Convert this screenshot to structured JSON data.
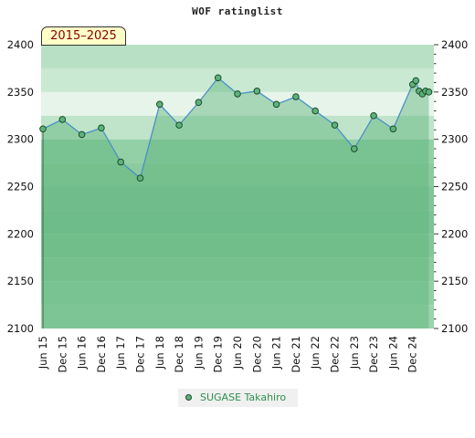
{
  "chart_data": {
    "type": "line",
    "title": "WOF ratinglist",
    "badge": "2015–2025",
    "ylim": [
      2100,
      2400
    ],
    "yticks": [
      2100,
      2150,
      2200,
      2250,
      2300,
      2350,
      2400
    ],
    "y_axis_both_sides": true,
    "x_tick_labels": [
      "Jun 15",
      "Dec 15",
      "Jun 16",
      "Dec 16",
      "Jun 17",
      "Dec 17",
      "Jun 18",
      "Dec 18",
      "Jun 19",
      "Dec 19",
      "Jun 20",
      "Dec 20",
      "Jun 21",
      "Dec 21",
      "Jun 22",
      "Dec 22",
      "Jun 23",
      "Dec 23",
      "Jun 24",
      "Dec 24"
    ],
    "series": [
      {
        "name": "SUGASE Takahiro",
        "color": "#5cb37a",
        "points": [
          {
            "x": "2015-06",
            "y": 2311
          },
          {
            "x": "2015-12",
            "y": 2321
          },
          {
            "x": "2016-06",
            "y": 2305
          },
          {
            "x": "2016-12",
            "y": 2312
          },
          {
            "x": "2017-06",
            "y": 2276
          },
          {
            "x": "2017-12",
            "y": 2259
          },
          {
            "x": "2018-06",
            "y": 2337
          },
          {
            "x": "2018-12",
            "y": 2315
          },
          {
            "x": "2019-06",
            "y": 2339
          },
          {
            "x": "2019-12",
            "y": 2365
          },
          {
            "x": "2020-06",
            "y": 2348
          },
          {
            "x": "2020-12",
            "y": 2351
          },
          {
            "x": "2021-06",
            "y": 2337
          },
          {
            "x": "2021-12",
            "y": 2345
          },
          {
            "x": "2022-06",
            "y": 2330
          },
          {
            "x": "2022-12",
            "y": 2315
          },
          {
            "x": "2023-06",
            "y": 2290
          },
          {
            "x": "2023-12",
            "y": 2325
          },
          {
            "x": "2024-06",
            "y": 2311
          },
          {
            "x": "2024-12",
            "y": 2358
          },
          {
            "x": "2025-01",
            "y": 2362
          },
          {
            "x": "2025-02",
            "y": 2351
          },
          {
            "x": "2025-03",
            "y": 2348
          },
          {
            "x": "2025-04",
            "y": 2351
          },
          {
            "x": "2025-05",
            "y": 2350
          }
        ]
      }
    ],
    "legend_position": "bottom-center",
    "grid": false,
    "colors": {
      "line": "#4a90c8",
      "marker_edge": "#1e4a2c",
      "fill": "#5cb37a",
      "bands_light": "#eef7f0",
      "bands_dark": "#7cc397"
    }
  }
}
